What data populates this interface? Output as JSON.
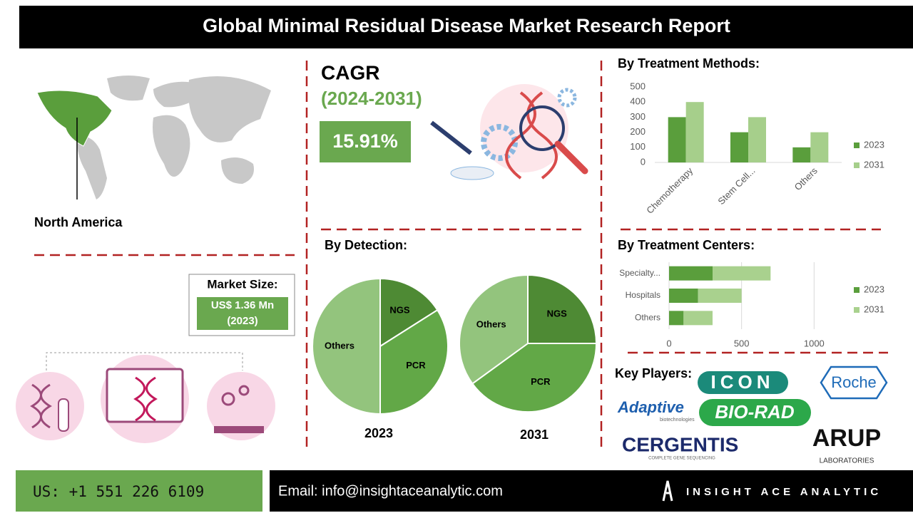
{
  "title": "Global Minimal Residual Disease Market Research Report",
  "region": "North America",
  "cagr": {
    "label": "CAGR",
    "period": "(2024-2031)",
    "value": "15.91%"
  },
  "market_size": {
    "label": "Market Size:",
    "value": "US$ 1.36 Mn",
    "year": "(2023)"
  },
  "key_players": {
    "label": "Key Players:",
    "logos": [
      "ICON",
      "Roche",
      "Adaptive",
      "biotechnologies",
      "BIO-RAD",
      "CERGENTIS",
      "COMPLETE GENE SEQUENCING",
      "ARUP",
      "LABORATORIES"
    ]
  },
  "footer": {
    "phone": "US: +1 551 226 6109",
    "email": "Email: info@insightaceanalytic.com",
    "brand": "INSIGHT ACE ANALYTIC"
  },
  "chart_data": [
    {
      "type": "bar",
      "title": "By Treatment Methods:",
      "categories": [
        "Chemotherapy",
        "Stem Cell...",
        "Others"
      ],
      "series": [
        {
          "name": "2023",
          "color": "#5a9e3c",
          "values": [
            300,
            200,
            100
          ]
        },
        {
          "name": "2031",
          "color": "#a6cf8b",
          "values": [
            400,
            300,
            200
          ]
        }
      ],
      "ylim": [
        0,
        500
      ],
      "yticks": [
        0,
        100,
        200,
        300,
        400,
        500
      ],
      "grid": false,
      "legend": "right"
    },
    {
      "type": "pie",
      "title": "By Detection:",
      "categories": [
        "NGS",
        "PCR",
        "Others"
      ],
      "colors": [
        "#4e8a34",
        "#62a847",
        "#93c47d"
      ],
      "series": [
        {
          "name": "2023",
          "values": [
            16,
            34,
            50
          ]
        },
        {
          "name": "2031",
          "values": [
            25,
            40,
            35
          ]
        }
      ]
    },
    {
      "type": "hbar",
      "title": "By Treatment Centers:",
      "stacked": true,
      "categories": [
        "Specialty...",
        "Hospitals",
        "Others"
      ],
      "series": [
        {
          "name": "2023",
          "color": "#5a9e3c",
          "values": [
            300,
            200,
            100
          ]
        },
        {
          "name": "2031",
          "color": "#a9d18e",
          "values": [
            400,
            300,
            200
          ]
        }
      ],
      "xlim": [
        0,
        1200
      ],
      "xticks": [
        0,
        500,
        1000
      ],
      "grid": true,
      "legend": "right"
    }
  ]
}
